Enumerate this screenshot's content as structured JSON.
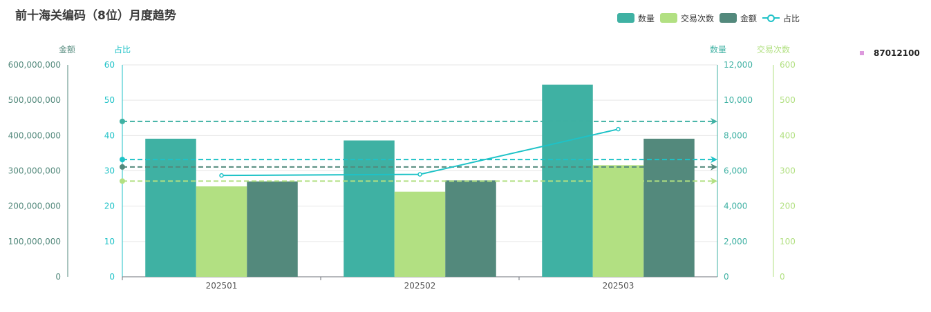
{
  "title": "前十海关编码（8位）月度趋势",
  "legend": [
    {
      "label": "数量",
      "color": "#3fb1a3",
      "kind": "bar"
    },
    {
      "label": "交易次数",
      "color": "#b2e082",
      "kind": "bar"
    },
    {
      "label": "金额",
      "color": "#53897c",
      "kind": "bar"
    },
    {
      "label": "占比",
      "color": "#1ec2c7",
      "kind": "line"
    }
  ],
  "side_legend": {
    "label": "87012100",
    "color": "#dd99dd"
  },
  "chart_data": {
    "type": "bar",
    "categories": [
      "202501",
      "202502",
      "202503"
    ],
    "series": [
      {
        "name": "数量",
        "type": "bar",
        "axis": "数量",
        "color": "#3fb1a3",
        "values": [
          7820,
          7720,
          10880
        ]
      },
      {
        "name": "交易次数",
        "type": "bar",
        "axis": "交易次数",
        "color": "#b2e082",
        "values": [
          256,
          241,
          316
        ]
      },
      {
        "name": "金额",
        "type": "bar",
        "axis": "金额",
        "color": "#53897c",
        "values": [
          270000000,
          273000000,
          391000000
        ]
      },
      {
        "name": "占比",
        "type": "line",
        "axis": "占比",
        "color": "#1ec2c7",
        "values": [
          28.7,
          29.0,
          41.8
        ]
      }
    ],
    "averages": [
      {
        "series": "数量",
        "axis": "数量",
        "value": 8800,
        "color": "#3fb1a3"
      },
      {
        "series": "占比",
        "axis": "占比",
        "value": 33.2,
        "color": "#1ec2c7"
      },
      {
        "series": "金额",
        "axis": "金额",
        "value": 311000000,
        "color": "#53897c"
      },
      {
        "series": "交易次数",
        "axis": "交易次数",
        "value": 271,
        "color": "#b2e082"
      }
    ],
    "axes": {
      "金额": {
        "label": "金额",
        "min": 0,
        "max": 600000000,
        "ticks": [
          "0",
          "100,000,000",
          "200,000,000",
          "300,000,000",
          "400,000,000",
          "500,000,000",
          "600,000,000"
        ],
        "color": "#53897c"
      },
      "占比": {
        "label": "占比",
        "min": 0,
        "max": 60,
        "ticks": [
          "0",
          "10",
          "20",
          "30",
          "40",
          "50",
          "60"
        ],
        "color": "#1ec2c7"
      },
      "数量": {
        "label": "数量",
        "min": 0,
        "max": 12000,
        "ticks": [
          "0",
          "2,000",
          "4,000",
          "6,000",
          "8,000",
          "10,000",
          "12,000"
        ],
        "color": "#3fb1a3"
      },
      "交易次数": {
        "label": "交易次数",
        "min": 0,
        "max": 600,
        "ticks": [
          "0",
          "100",
          "200",
          "300",
          "400",
          "500",
          "600"
        ],
        "color": "#b2e082"
      }
    },
    "grid": true,
    "legend_position": "top-right"
  }
}
